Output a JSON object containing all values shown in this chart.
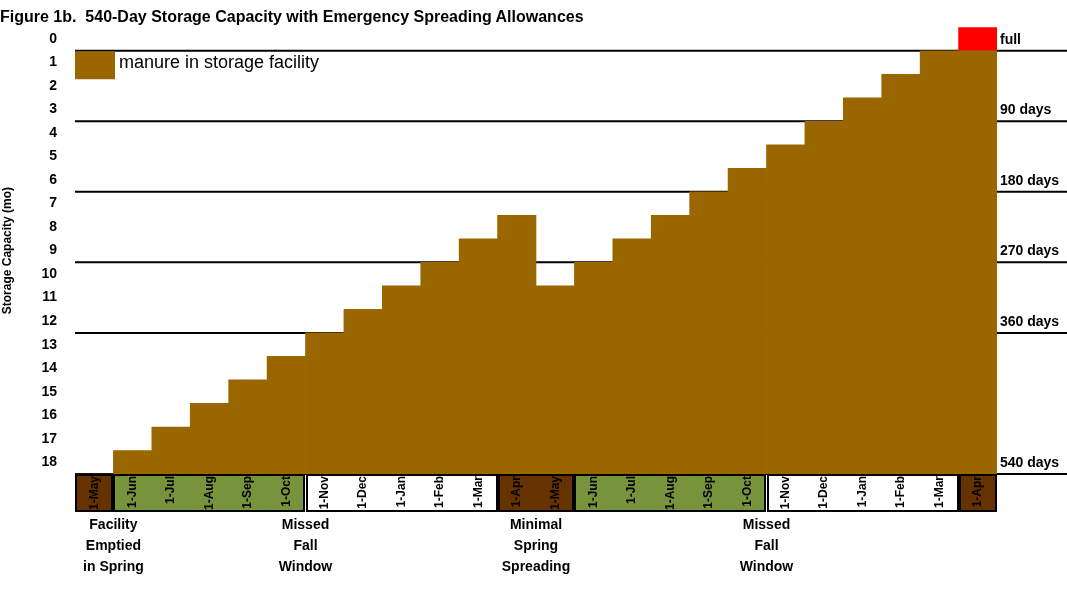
{
  "chart_data": {
    "type": "bar",
    "title": "Figure 1b.  540-Day Storage Capacity with Emergency Spreading Allowances",
    "ylabel": "Storage Capacity (mo)",
    "categories": [
      "1-May",
      "1-Jun",
      "1-Jul",
      "1-Aug",
      "1-Sep",
      "1-Oct",
      "1-Nov",
      "1-Dec",
      "1-Jan",
      "1-Feb",
      "1-Mar",
      "1-Apr",
      "1-May",
      "1-Jun",
      "1-Jul",
      "1-Aug",
      "1-Sep",
      "1-Oct",
      "1-Nov",
      "1-Dec",
      "1-Jan",
      "1-Feb",
      "1-Mar",
      "1-Apr"
    ],
    "series": [
      {
        "name": "manure in storage facility",
        "color": "#996600",
        "base": [
          18.5,
          18.5,
          18.5,
          18.5,
          18.5,
          18.5,
          18.5,
          18.5,
          18.5,
          18.5,
          18.5,
          18.5,
          18.5,
          18.5,
          18.5,
          18.5,
          18.5,
          18.5,
          18.5,
          18.5,
          18.5,
          18.5,
          18.5,
          18.5
        ],
        "values": [
          0,
          -1,
          -2,
          -3,
          -4,
          -5,
          -6,
          -7,
          -8,
          -9,
          -10,
          -11,
          -8,
          -9,
          -10,
          -11,
          -12,
          -13,
          -14,
          -15,
          -16,
          -17,
          -18,
          -18
        ]
      },
      {
        "color": "#ff0000",
        "base": [
          null,
          null,
          null,
          null,
          null,
          null,
          null,
          null,
          null,
          null,
          null,
          null,
          null,
          null,
          null,
          null,
          null,
          null,
          null,
          null,
          null,
          null,
          null,
          0.5
        ],
        "values": [
          null,
          null,
          null,
          null,
          null,
          null,
          null,
          null,
          null,
          null,
          null,
          null,
          null,
          null,
          null,
          null,
          null,
          null,
          null,
          null,
          null,
          null,
          null,
          -1
        ]
      }
    ],
    "ylim": [
      18.5,
      -0.5
    ],
    "yticks": [
      0,
      1,
      2,
      3,
      4,
      5,
      6,
      7,
      8,
      9,
      10,
      11,
      12,
      13,
      14,
      15,
      16,
      17,
      18
    ],
    "ref_lines": [
      {
        "axis": "y",
        "value": 0.5,
        "label": "full",
        "color": "#000000"
      },
      {
        "axis": "y",
        "value": 3.5,
        "label": "90 days",
        "color": "#000000"
      },
      {
        "axis": "y",
        "value": 6.5,
        "label": "180 days",
        "color": "#000000"
      },
      {
        "axis": "y",
        "value": 9.5,
        "label": "270 days",
        "color": "#000000"
      },
      {
        "axis": "y",
        "value": 12.5,
        "label": "360 days",
        "color": "#000000"
      },
      {
        "axis": "y",
        "value": 18.5,
        "label": "540 days",
        "color": "#000000"
      }
    ],
    "annotations": [
      "Facility Emptied in Spring",
      "Missed Fall Window",
      "Minimal Spring Spreading",
      "Missed Fall Window"
    ],
    "grid": false,
    "legend": "top left"
  }
}
